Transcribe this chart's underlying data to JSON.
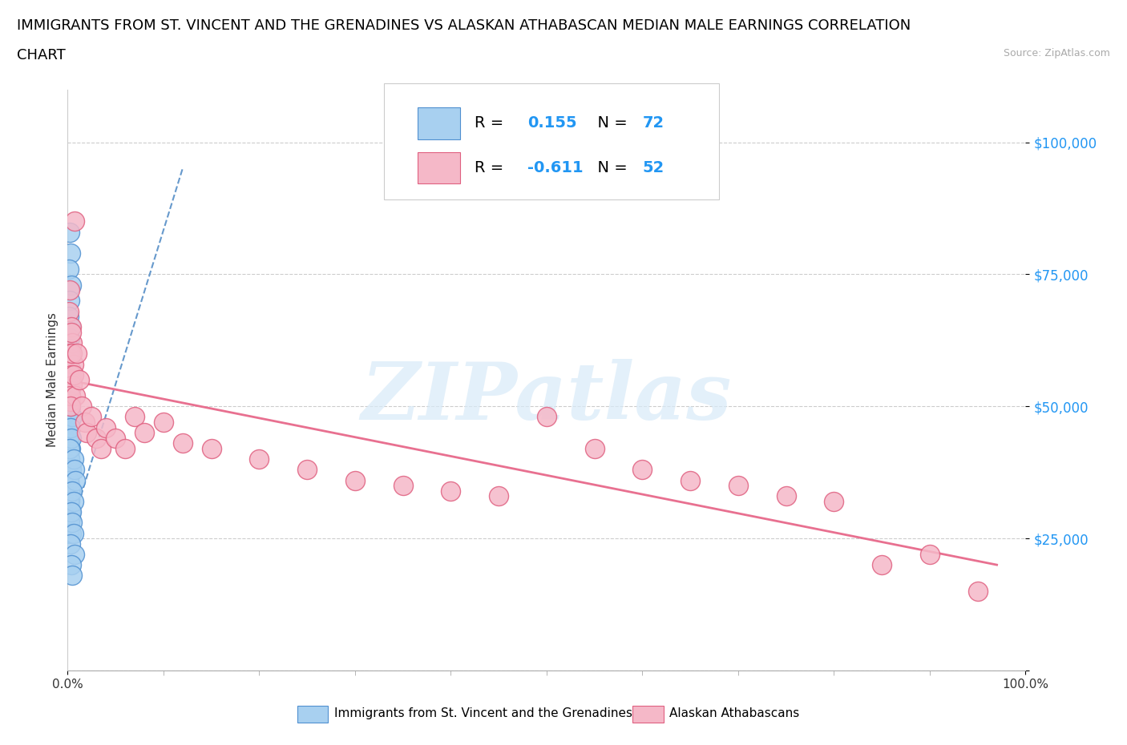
{
  "title_line1": "IMMIGRANTS FROM ST. VINCENT AND THE GRENADINES VS ALASKAN ATHABASCAN MEDIAN MALE EARNINGS CORRELATION",
  "title_line2": "CHART",
  "source": "Source: ZipAtlas.com",
  "ylabel": "Median Male Earnings",
  "xlim": [
    0,
    1.0
  ],
  "ylim": [
    0,
    110000
  ],
  "r1": 0.155,
  "n1": 72,
  "r2": -0.611,
  "n2": 52,
  "color_blue": "#a8d0f0",
  "color_pink": "#f5b8c8",
  "color_blue_edge": "#5090d0",
  "color_pink_edge": "#e06080",
  "color_blue_line": "#6699cc",
  "color_pink_line": "#e87090",
  "background_color": "#ffffff",
  "grid_color": "#cccccc",
  "watermark_text": "ZIPatlas",
  "title_fontsize": 13,
  "legend_fontsize": 14,
  "blue_x": [
    0.002,
    0.003,
    0.001,
    0.004,
    0.002,
    0.001,
    0.003,
    0.002,
    0.001,
    0.002,
    0.003,
    0.004,
    0.001,
    0.002,
    0.003,
    0.001,
    0.002,
    0.001,
    0.003,
    0.002,
    0.001,
    0.002,
    0.003,
    0.001,
    0.002,
    0.001,
    0.002,
    0.003,
    0.001,
    0.002,
    0.001,
    0.002,
    0.003,
    0.001,
    0.002,
    0.001,
    0.002,
    0.003,
    0.001,
    0.002,
    0.001,
    0.003,
    0.004,
    0.002,
    0.001,
    0.003,
    0.002,
    0.004,
    0.001,
    0.002,
    0.001,
    0.003,
    0.002,
    0.004,
    0.001,
    0.002,
    0.005,
    0.003,
    0.004,
    0.002,
    0.006,
    0.007,
    0.008,
    0.005,
    0.006,
    0.004,
    0.005,
    0.006,
    0.003,
    0.007,
    0.004,
    0.005
  ],
  "blue_y": [
    83000,
    79000,
    76000,
    73000,
    70000,
    67000,
    65000,
    63000,
    61000,
    59000,
    57000,
    55000,
    54000,
    53000,
    52000,
    51000,
    50000,
    49000,
    48000,
    47000,
    46000,
    45000,
    44000,
    43000,
    42000,
    41000,
    40000,
    39000,
    38000,
    37000,
    36000,
    35000,
    34000,
    33000,
    32000,
    31000,
    30000,
    29000,
    28000,
    27000,
    26000,
    50000,
    48000,
    46000,
    44000,
    42000,
    40000,
    38000,
    36000,
    34000,
    32000,
    30000,
    28000,
    26000,
    52000,
    50000,
    48000,
    46000,
    44000,
    42000,
    40000,
    38000,
    36000,
    34000,
    32000,
    30000,
    28000,
    26000,
    24000,
    22000,
    20000,
    18000
  ],
  "pink_x": [
    0.002,
    0.003,
    0.004,
    0.002,
    0.003,
    0.001,
    0.004,
    0.005,
    0.003,
    0.002,
    0.006,
    0.004,
    0.005,
    0.003,
    0.007,
    0.004,
    0.005,
    0.006,
    0.008,
    0.003,
    0.01,
    0.012,
    0.015,
    0.018,
    0.02,
    0.025,
    0.03,
    0.035,
    0.04,
    0.05,
    0.06,
    0.07,
    0.08,
    0.1,
    0.12,
    0.15,
    0.2,
    0.25,
    0.3,
    0.35,
    0.4,
    0.45,
    0.5,
    0.55,
    0.6,
    0.65,
    0.7,
    0.75,
    0.8,
    0.85,
    0.9,
    0.95
  ],
  "pink_y": [
    60000,
    57000,
    55000,
    53000,
    51000,
    68000,
    65000,
    62000,
    60000,
    72000,
    58000,
    56000,
    54000,
    52000,
    85000,
    64000,
    60000,
    56000,
    52000,
    50000,
    60000,
    55000,
    50000,
    47000,
    45000,
    48000,
    44000,
    42000,
    46000,
    44000,
    42000,
    48000,
    45000,
    47000,
    43000,
    42000,
    40000,
    38000,
    36000,
    35000,
    34000,
    33000,
    48000,
    42000,
    38000,
    36000,
    35000,
    33000,
    32000,
    20000,
    22000,
    15000
  ],
  "blue_line_x": [
    0.0,
    0.12
  ],
  "blue_line_y": [
    25000,
    95000
  ],
  "pink_line_x": [
    0.0,
    0.97
  ],
  "pink_line_y": [
    55000,
    20000
  ]
}
